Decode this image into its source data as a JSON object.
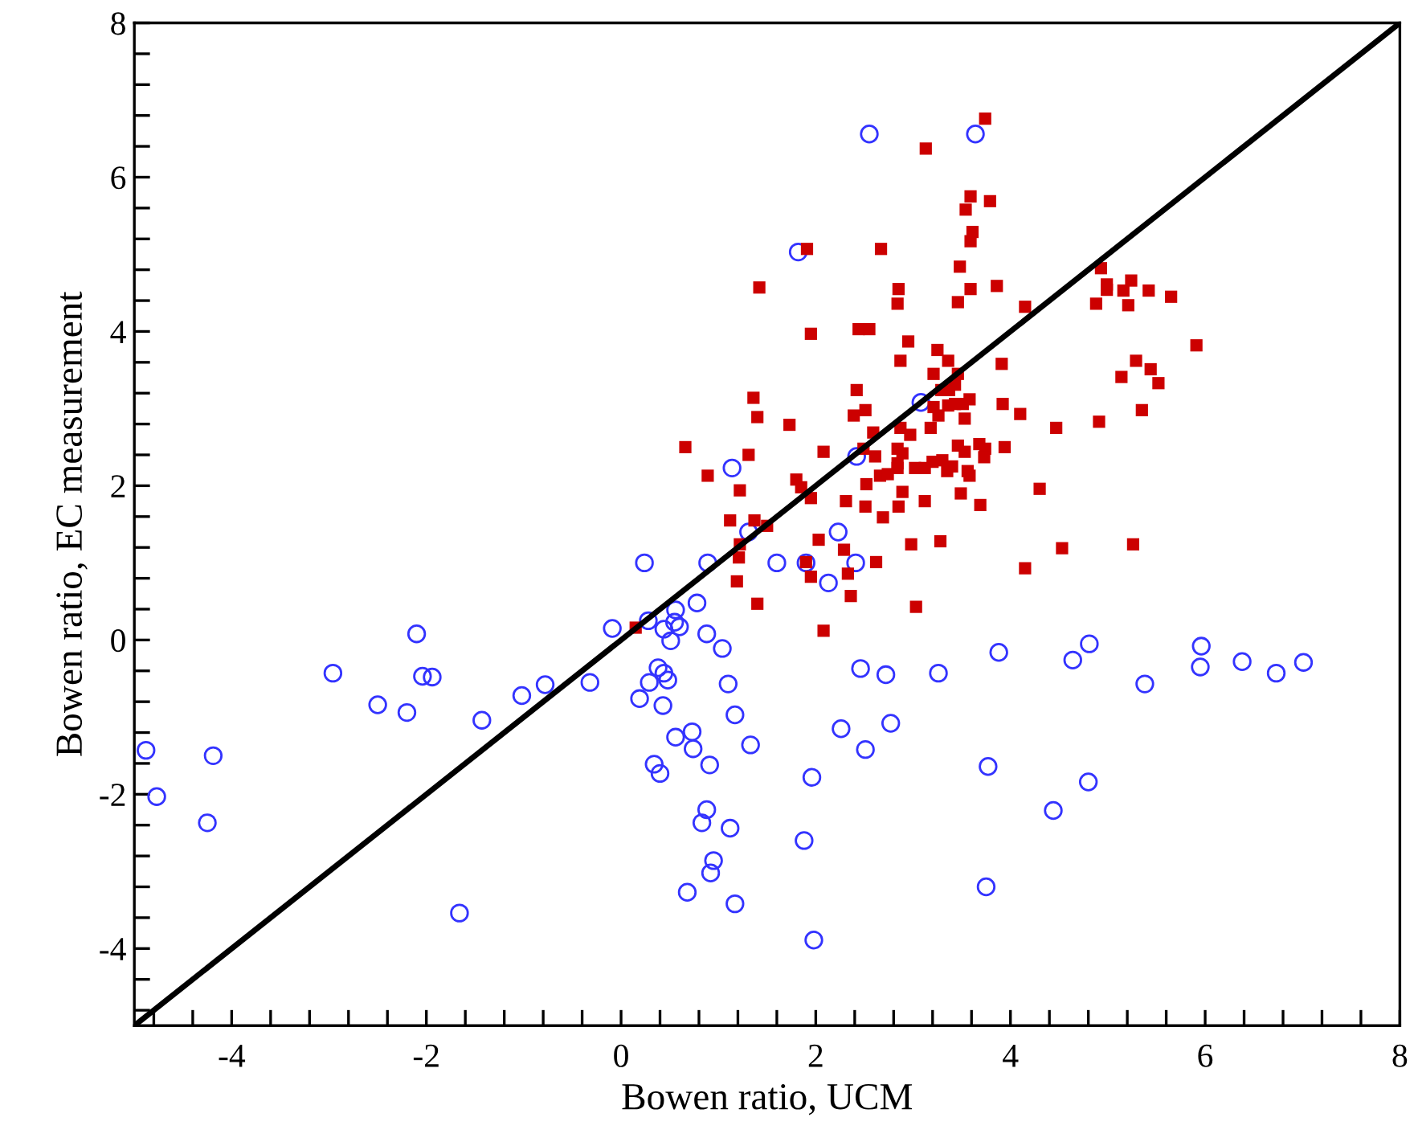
{
  "chart_data": {
    "type": "scatter",
    "xlabel": "Bowen ratio, UCM",
    "ylabel": "Bowen ratio, EC measurement",
    "xlim": [
      -5,
      8
    ],
    "ylim": [
      -5,
      8
    ],
    "xticks": [
      {
        "value": -4.8,
        "label": null
      },
      {
        "value": -4.4,
        "label": null
      },
      -4,
      {
        "value": -3.6,
        "label": null
      },
      {
        "value": -3.2,
        "label": null
      },
      {
        "value": -2.8,
        "label": null
      },
      {
        "value": -2.4,
        "label": null
      },
      -2,
      {
        "value": -1.6,
        "label": null
      },
      {
        "value": -1.2,
        "label": null
      },
      {
        "value": -0.8,
        "label": null
      },
      {
        "value": -0.4,
        "label": null
      },
      0,
      {
        "value": 0.4,
        "label": null
      },
      {
        "value": 0.8,
        "label": null
      },
      {
        "value": 1.2,
        "label": null
      },
      {
        "value": 1.6,
        "label": null
      },
      2,
      {
        "value": 2.4,
        "label": null
      },
      {
        "value": 2.8,
        "label": null
      },
      {
        "value": 3.2,
        "label": null
      },
      {
        "value": 3.6,
        "label": null
      },
      4,
      {
        "value": 4.4,
        "label": null
      },
      {
        "value": 4.8,
        "label": null
      },
      {
        "value": 5.2,
        "label": null
      },
      {
        "value": 5.6,
        "label": null
      },
      6,
      {
        "value": 6.4,
        "label": null
      },
      {
        "value": 6.8,
        "label": null
      },
      {
        "value": 7.2,
        "label": null
      },
      {
        "value": 7.6,
        "label": null
      },
      8
    ],
    "yticks": [
      {
        "value": -4.8,
        "label": null
      },
      {
        "value": -4.4,
        "label": null
      },
      -4,
      {
        "value": -3.6,
        "label": null
      },
      {
        "value": -3.2,
        "label": null
      },
      {
        "value": -2.8,
        "label": null
      },
      {
        "value": -2.4,
        "label": null
      },
      -2,
      {
        "value": -1.6,
        "label": null
      },
      {
        "value": -1.2,
        "label": null
      },
      {
        "value": -0.8,
        "label": null
      },
      {
        "value": -0.4,
        "label": null
      },
      0,
      {
        "value": 0.4,
        "label": null
      },
      {
        "value": 0.8,
        "label": null
      },
      {
        "value": 1.2,
        "label": null
      },
      {
        "value": 1.6,
        "label": null
      },
      2,
      {
        "value": 2.4,
        "label": null
      },
      {
        "value": 2.8,
        "label": null
      },
      {
        "value": 3.2,
        "label": null
      },
      {
        "value": 3.6,
        "label": null
      },
      4,
      {
        "value": 4.4,
        "label": null
      },
      {
        "value": 4.8,
        "label": null
      },
      {
        "value": 5.2,
        "label": null
      },
      {
        "value": 5.6,
        "label": null
      },
      6,
      {
        "value": 6.4,
        "label": null
      },
      {
        "value": 6.8,
        "label": null
      },
      {
        "value": 7.2,
        "label": null
      },
      {
        "value": 7.6,
        "label": null
      },
      8
    ],
    "grid": false,
    "legend": false,
    "series": [
      {
        "type": "line",
        "color": "#000000",
        "marker": "none",
        "line_style": "solid",
        "x": [
          -5,
          8
        ],
        "values": [
          -5,
          8
        ]
      },
      {
        "color": "#3333ff",
        "marker": "circle",
        "x": [
          -4.88,
          -4.77,
          -4.19,
          -4.25,
          -2.96,
          -2.1,
          -2.04,
          -1.94,
          -2.5,
          -2.2,
          -1.43,
          -1.02,
          -0.78,
          -0.32,
          -0.09,
          0.19,
          -1.66,
          0.24,
          0.89,
          1.31,
          1.6,
          1.9,
          2.23,
          2.41,
          2.13,
          0.28,
          0.56,
          0.78,
          0.55,
          0.44,
          0.6,
          0.51,
          0.88,
          1.04,
          0.38,
          0.44,
          0.48,
          0.29,
          0.43,
          1.1,
          2.46,
          2.72,
          3.26,
          3.88,
          4.64,
          4.81,
          5.38,
          5.96,
          5.95,
          6.38,
          6.73,
          7.01,
          1.17,
          0.56,
          0.73,
          0.74,
          1.33,
          2.26,
          2.77,
          2.51,
          0.34,
          0.4,
          0.91,
          1.96,
          3.77,
          4.8,
          4.44,
          0.88,
          0.83,
          1.12,
          1.88,
          0.95,
          0.92,
          0.68,
          1.17,
          3.75,
          1.98,
          2.55,
          3.64,
          1.82,
          3.08,
          2.42,
          1.14
        ],
        "values": [
          -1.43,
          -2.03,
          -1.5,
          -2.37,
          -0.43,
          0.08,
          -0.47,
          -0.48,
          -0.84,
          -0.94,
          -1.04,
          -0.72,
          -0.58,
          -0.55,
          0.15,
          -0.76,
          -3.54,
          1.0,
          1.0,
          1.4,
          1.0,
          1.0,
          1.4,
          1.0,
          0.74,
          0.25,
          0.39,
          0.48,
          0.23,
          0.14,
          0.17,
          -0.01,
          0.08,
          -0.11,
          -0.36,
          -0.43,
          -0.52,
          -0.55,
          -0.85,
          -0.57,
          -0.37,
          -0.45,
          -0.43,
          -0.16,
          -0.26,
          -0.05,
          -0.57,
          -0.08,
          -0.35,
          -0.28,
          -0.43,
          -0.29,
          -0.97,
          -1.26,
          -1.19,
          -1.41,
          -1.36,
          -1.15,
          -1.08,
          -1.42,
          -1.61,
          -1.73,
          -1.62,
          -1.78,
          -1.64,
          -1.84,
          -2.21,
          -2.2,
          -2.37,
          -2.44,
          -2.6,
          -2.86,
          -3.02,
          -3.27,
          -3.42,
          -3.2,
          -3.89,
          6.56,
          6.56,
          5.03,
          3.08,
          2.38,
          2.23
        ]
      },
      {
        "color": "#cc0000",
        "marker": "square",
        "x": [
          3.74,
          3.13,
          3.59,
          3.79,
          3.54,
          3.61,
          3.59,
          1.91,
          2.67,
          3.48,
          1.42,
          2.85,
          3.59,
          3.86,
          2.84,
          3.46,
          4.15,
          4.93,
          4.99,
          4.99,
          5.24,
          5.16,
          5.42,
          5.65,
          4.88,
          5.21,
          1.95,
          2.44,
          2.55,
          2.95,
          3.25,
          2.87,
          3.36,
          3.91,
          3.21,
          3.46,
          5.91,
          5.29,
          5.44,
          5.52,
          5.14,
          5.35,
          4.91,
          4.47,
          4.1,
          3.92,
          2.42,
          2.51,
          2.39,
          3.29,
          3.37,
          3.43,
          3.21,
          3.26,
          3.36,
          3.43,
          3.51,
          3.58,
          3.53,
          1.36,
          1.4,
          0.66,
          0.89,
          1.31,
          1.22,
          1.73,
          2.59,
          2.87,
          2.97,
          3.18,
          1.8,
          1.85,
          2.08,
          2.49,
          2.61,
          2.84,
          2.89,
          2.84,
          2.84,
          2.66,
          2.74,
          2.52,
          3.02,
          3.12,
          3.2,
          3.3,
          3.35,
          3.4,
          3.46,
          3.53,
          3.68,
          3.74,
          3.73,
          3.94,
          3.56,
          3.58,
          3.49,
          3.69,
          4.3,
          2.89,
          3.12,
          2.85,
          2.51,
          2.31,
          1.95,
          2.69,
          1.12,
          1.37,
          1.5,
          2.03,
          2.29,
          2.98,
          3.28,
          4.53,
          5.26,
          1.22,
          1.21,
          1.9,
          2.62,
          1.19,
          1.95,
          2.33,
          4.15,
          1.4,
          2.36,
          3.03,
          2.08,
          0.15
        ],
        "values": [
          6.76,
          6.37,
          5.75,
          5.69,
          5.58,
          5.29,
          5.17,
          5.07,
          5.07,
          4.84,
          4.57,
          4.55,
          4.55,
          4.59,
          4.36,
          4.38,
          4.32,
          4.82,
          4.61,
          4.54,
          4.66,
          4.53,
          4.53,
          4.45,
          4.36,
          4.34,
          3.97,
          4.03,
          4.03,
          3.87,
          3.76,
          3.62,
          3.62,
          3.58,
          3.45,
          3.45,
          3.82,
          3.62,
          3.51,
          3.33,
          3.41,
          2.98,
          2.83,
          2.75,
          2.93,
          3.06,
          3.24,
          2.98,
          2.91,
          3.24,
          3.24,
          3.31,
          3.02,
          2.91,
          3.04,
          3.06,
          3.06,
          3.12,
          2.87,
          3.14,
          2.89,
          2.5,
          2.13,
          2.4,
          1.94,
          2.79,
          2.69,
          2.75,
          2.66,
          2.75,
          2.08,
          1.98,
          2.44,
          2.48,
          2.38,
          2.48,
          2.42,
          2.29,
          2.23,
          2.13,
          2.15,
          2.02,
          2.23,
          2.23,
          2.31,
          2.33,
          2.19,
          2.25,
          2.52,
          2.44,
          2.54,
          2.48,
          2.37,
          2.5,
          2.19,
          2.13,
          1.9,
          1.75,
          1.96,
          1.92,
          1.8,
          1.73,
          1.73,
          1.8,
          1.84,
          1.59,
          1.55,
          1.55,
          1.48,
          1.3,
          1.17,
          1.24,
          1.28,
          1.19,
          1.24,
          1.24,
          1.07,
          1.01,
          1.01,
          0.76,
          0.82,
          0.86,
          0.93,
          0.47,
          0.57,
          0.43,
          0.12,
          0.16
        ]
      }
    ]
  }
}
